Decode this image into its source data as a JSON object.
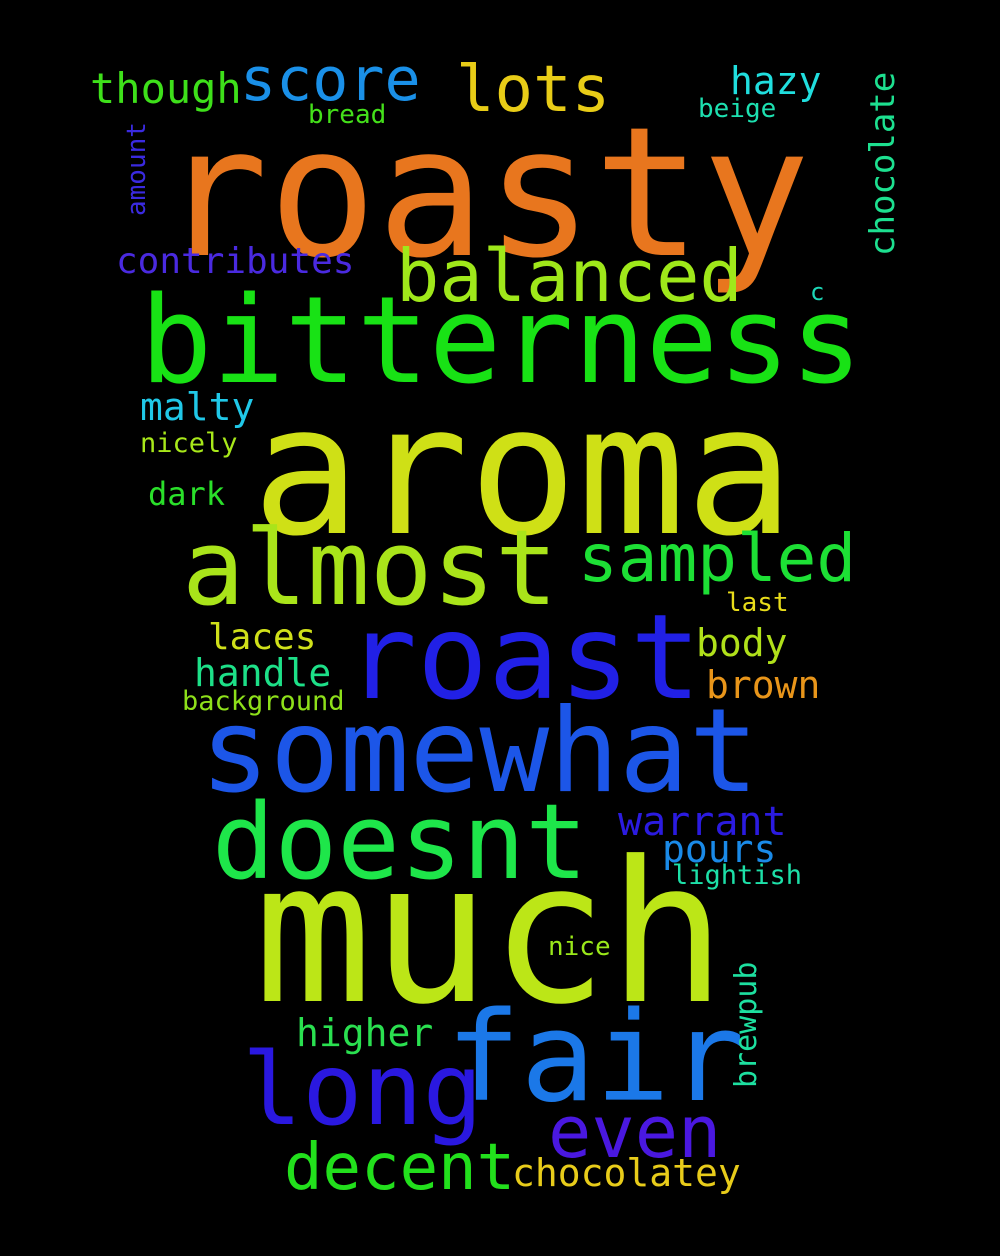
{
  "words": {
    "roasty": {
      "text": "roasty",
      "color": "#e8761e"
    },
    "aroma": {
      "text": "aroma",
      "color": "#cfe016"
    },
    "much": {
      "text": "much",
      "color": "#bce617"
    },
    "bitterness": {
      "text": "bitterness",
      "color": "#18e215"
    },
    "somewhat": {
      "text": "somewhat",
      "color": "#1c56e8"
    },
    "roast": {
      "text": "roast",
      "color": "#2120e6"
    },
    "fair": {
      "text": "fair",
      "color": "#1b78e8"
    },
    "doesnt": {
      "text": "doesnt",
      "color": "#1ee64a"
    },
    "almost": {
      "text": "almost",
      "color": "#a9e41a"
    },
    "long": {
      "text": "long",
      "color": "#2a18e0"
    },
    "even": {
      "text": "even",
      "color": "#4a18e0"
    },
    "balanced": {
      "text": "balanced",
      "color": "#9fe81a"
    },
    "sampled": {
      "text": "sampled",
      "color": "#1de035"
    },
    "decent": {
      "text": "decent",
      "color": "#22e01c"
    },
    "score": {
      "text": "score",
      "color": "#1a90e8"
    },
    "lots": {
      "text": "lots",
      "color": "#e8cc17"
    },
    "though": {
      "text": "though",
      "color": "#3ee01a"
    },
    "hazy": {
      "text": "hazy",
      "color": "#20dede"
    },
    "chocolatey": {
      "text": "chocolatey",
      "color": "#e8cc1a"
    },
    "contributes": {
      "text": "contributes",
      "color": "#4a2ae0"
    },
    "warrant": {
      "text": "warrant",
      "color": "#2b1be0"
    },
    "malty": {
      "text": "malty",
      "color": "#20c8e8"
    },
    "handle": {
      "text": "handle",
      "color": "#1de088"
    },
    "laces": {
      "text": "laces",
      "color": "#d0e01a"
    },
    "body": {
      "text": "body",
      "color": "#b0e01a"
    },
    "brown": {
      "text": "brown",
      "color": "#e8951a"
    },
    "pours": {
      "text": "pours",
      "color": "#1a8ae8"
    },
    "higher": {
      "text": "higher",
      "color": "#2ae050"
    },
    "dark": {
      "text": "dark",
      "color": "#2ae02a"
    },
    "chocolate": {
      "text": "chocolate",
      "color": "#1de090"
    },
    "brewpub": {
      "text": "brewpub",
      "color": "#1de0a0"
    },
    "nicely": {
      "text": "nicely",
      "color": "#a8e81a"
    },
    "background": {
      "text": "background",
      "color": "#8ee01a"
    },
    "lightish": {
      "text": "lightish",
      "color": "#1de0a8"
    },
    "nice": {
      "text": "nice",
      "color": "#9ae81a"
    },
    "last": {
      "text": "last",
      "color": "#e8dc1a"
    },
    "bread": {
      "text": "bread",
      "color": "#44e01a"
    },
    "beige": {
      "text": "beige",
      "color": "#1de0b0"
    },
    "amount": {
      "text": "amount",
      "color": "#3a2ae0"
    },
    "c": {
      "text": "c",
      "color": "#1dd8b8"
    }
  }
}
